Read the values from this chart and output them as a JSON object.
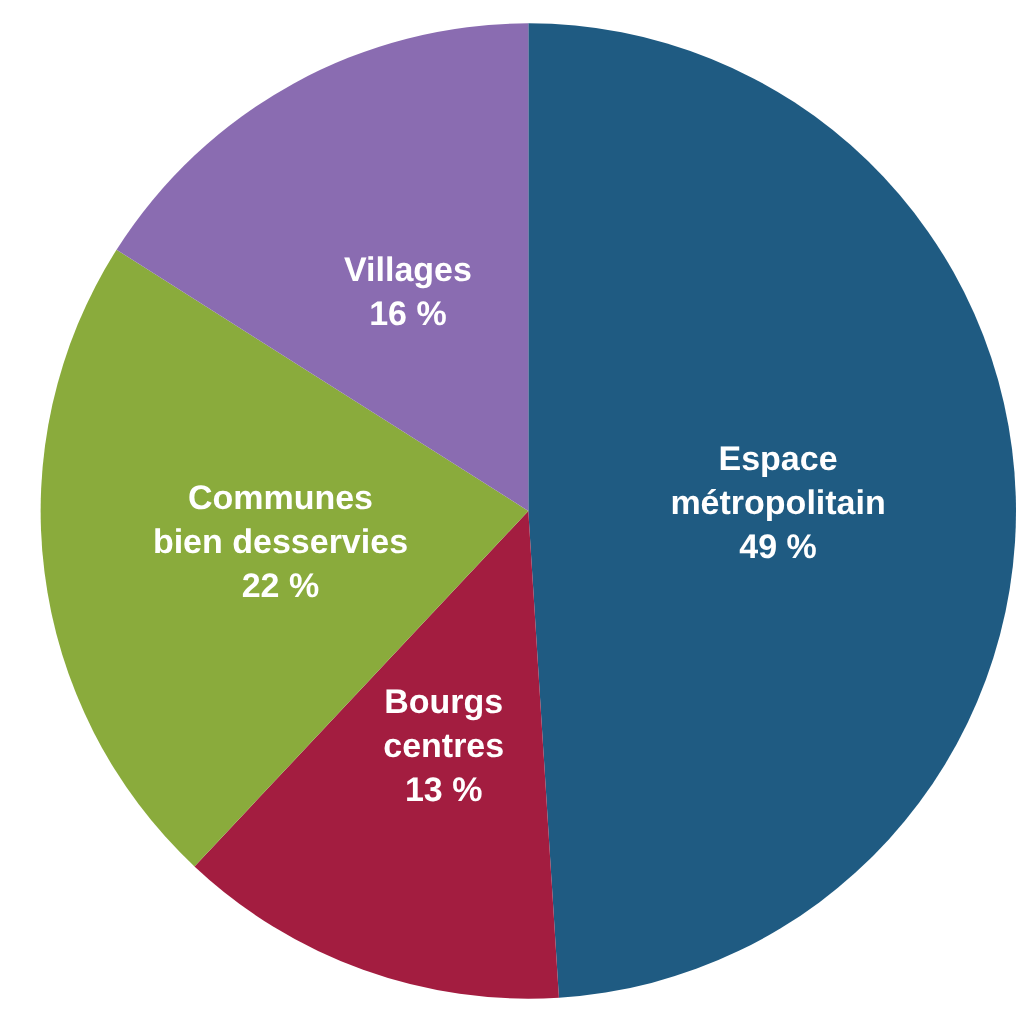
{
  "chart_data": {
    "type": "pie",
    "categories": [
      "Espace\nmétropolitain",
      "Bourgs\ncentres",
      "Communes\nbien desservies",
      "Villages"
    ],
    "values": [
      49,
      13,
      22,
      16
    ],
    "colors": [
      "#1f5b82",
      "#a31d40",
      "#8aab3c",
      "#8a6cb1"
    ],
    "value_labels": [
      "49 %",
      "13 %",
      "22 %",
      "16 %"
    ],
    "legend": false
  }
}
